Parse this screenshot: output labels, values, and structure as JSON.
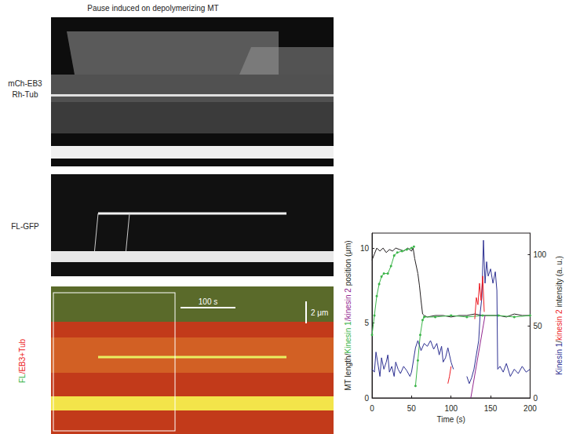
{
  "figure": {
    "title": "Pause induced on depolymerizing MT",
    "panels": [
      {
        "labels": [
          {
            "text": "mCh-EB3",
            "color": "#222222"
          },
          {
            "text": "Rh-Tub",
            "color": "#222222"
          }
        ]
      },
      {
        "labels": [
          {
            "text": "FL-GFP",
            "color": "#222222"
          }
        ]
      },
      {
        "labels": [
          {
            "text": "FL",
            "color": "#3cb54a"
          },
          {
            "text": "/EB3+Tub",
            "color": "#ed1c24"
          }
        ],
        "scale_bars": [
          "100 s",
          "2 μm"
        ]
      }
    ]
  },
  "chart_data": {
    "type": "line",
    "xlabel": "Time (s)",
    "ylabel": [
      {
        "text": "MT length/",
        "color": "#231f20"
      },
      {
        "text": "Kinesin 1",
        "color": "#3cb54a"
      },
      {
        "text": "/kinesin 2",
        "color": "#92278f"
      },
      {
        "text": " position (μm)",
        "color": "#231f20"
      }
    ],
    "y2label": [
      {
        "text": "Kinesin 1",
        "color": "#2e3192"
      },
      {
        "text": "/",
        "color": "#231f20"
      },
      {
        "text": "kinesin 2",
        "color": "#ed1c24"
      },
      {
        "text": " intensity (a. u.)",
        "color": "#231f20"
      }
    ],
    "xlim": [
      0,
      200
    ],
    "xticks": [
      0,
      50,
      100,
      150,
      200
    ],
    "ylim": [
      0,
      11
    ],
    "yticks": [
      0,
      5,
      10
    ],
    "y2lim": [
      0,
      115
    ],
    "y2ticks": [
      0,
      50,
      100
    ],
    "grid": false,
    "series": [
      {
        "color": "#231f20",
        "axis": "y",
        "marker": "none",
        "x": [
          0,
          3,
          6,
          10,
          14,
          18,
          22,
          26,
          30,
          35,
          40,
          45,
          50,
          52,
          54,
          56,
          58,
          60,
          62,
          64,
          66,
          70,
          80,
          90,
          100,
          110,
          120,
          130,
          140,
          150,
          160,
          170,
          180,
          190,
          200
        ],
        "values": [
          9.2,
          9.6,
          10,
          9.8,
          10,
          9.7,
          9.9,
          9.8,
          10,
          9.9,
          9.8,
          10,
          9.8,
          10,
          9.3,
          8.8,
          8.3,
          7.5,
          6.5,
          5.6,
          5.5,
          5.4,
          5.5,
          5.5,
          5.4,
          5.5,
          5.5,
          5.6,
          5.5,
          5.5,
          5.5,
          5.4,
          5.6,
          5.5,
          5.5
        ]
      },
      {
        "color": "#3cb54a",
        "axis": "y",
        "marker": "circle",
        "x": [
          0,
          3,
          6,
          9,
          12,
          15,
          20,
          24,
          28,
          32,
          38,
          44,
          50,
          53,
          54,
          55,
          58,
          61,
          64,
          66,
          80,
          100,
          120,
          140,
          160,
          180,
          200
        ],
        "values": [
          4.2,
          5.5,
          6.8,
          7.6,
          8.1,
          8.3,
          8.3,
          8.8,
          9.5,
          9.7,
          9.8,
          9.9,
          10,
          10.1,
          null,
          0.8,
          2.5,
          4.2,
          5.2,
          5.4,
          5.4,
          5.5,
          5.4,
          5.5,
          5.5,
          5.4,
          5.5
        ]
      },
      {
        "color": "#92278f",
        "axis": "y",
        "marker": "none",
        "x": [
          125,
          143
        ],
        "values": [
          0,
          5.5
        ]
      },
      {
        "color": "#2e3192",
        "axis": "y2",
        "marker": "none",
        "x": [
          0,
          3,
          5,
          8,
          10,
          12,
          15,
          18,
          20,
          22,
          25,
          28,
          30,
          33,
          36,
          40,
          44,
          48,
          50,
          55,
          58,
          62,
          66,
          70,
          74,
          78,
          82,
          85,
          88,
          90,
          93,
          96,
          100,
          103,
          110,
          120,
          123,
          126,
          129,
          132,
          135,
          137,
          139,
          141,
          143,
          145,
          147,
          150,
          153,
          156,
          158,
          159,
          162,
          166,
          170,
          175,
          180,
          185,
          190,
          195,
          200
        ],
        "values": [
          20,
          18,
          32,
          22,
          15,
          28,
          20,
          25,
          30,
          18,
          22,
          15,
          25,
          20,
          17,
          22,
          19,
          15,
          18,
          35,
          40,
          33,
          38,
          36,
          40,
          34,
          38,
          30,
          36,
          25,
          28,
          35,
          25,
          20,
          null,
          15,
          10,
          14,
          20,
          30,
          40,
          60,
          70,
          110,
          80,
          95,
          85,
          90,
          80,
          88,
          75,
          20,
          22,
          18,
          24,
          15,
          20,
          17,
          22,
          18,
          20
        ]
      },
      {
        "color": "#ed1c24",
        "axis": "y2",
        "marker": "none",
        "x": [
          96,
          98,
          100,
          110,
          130,
          132,
          134,
          136,
          138,
          140,
          142
        ],
        "values": [
          10,
          15,
          22,
          null,
          55,
          70,
          65,
          80,
          68,
          85,
          60
        ]
      }
    ]
  }
}
